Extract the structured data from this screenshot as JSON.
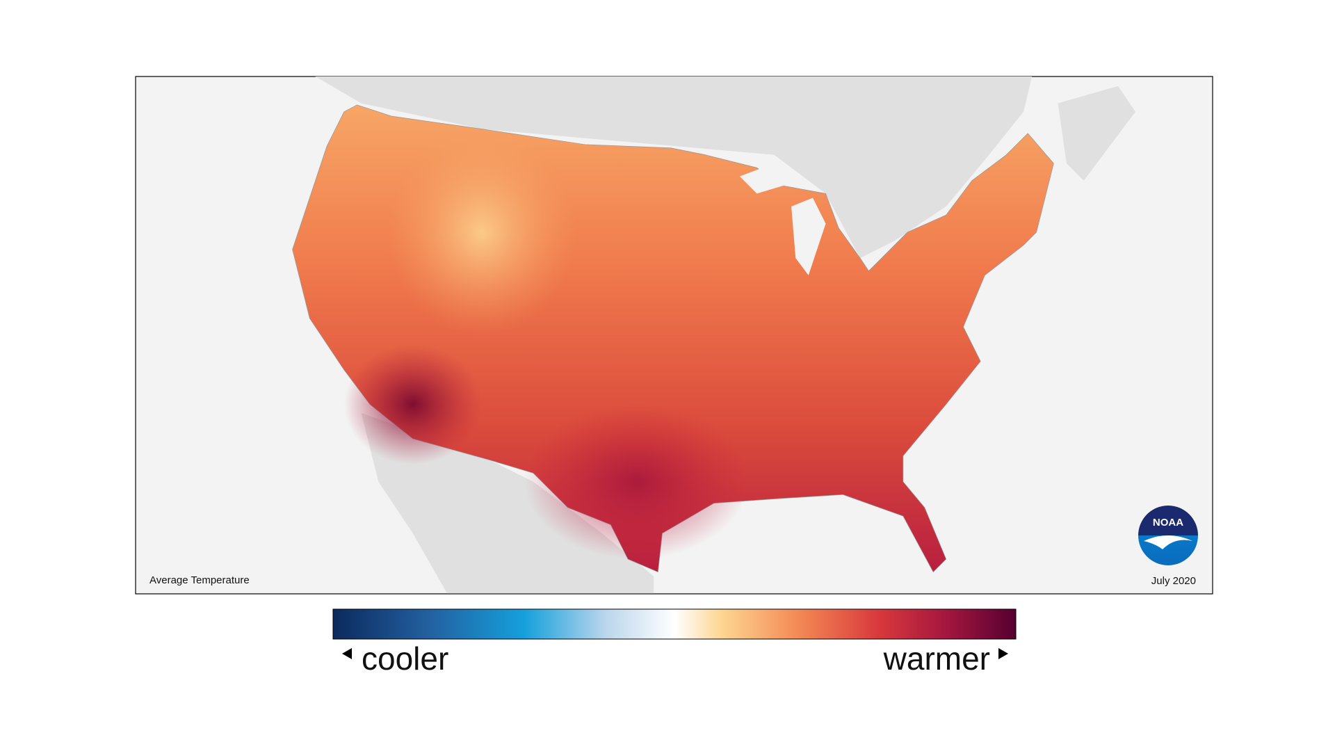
{
  "map": {
    "label": "Average Temperature",
    "date": "July 2020"
  },
  "legend": {
    "low_label": "cooler",
    "high_label": "warmer"
  },
  "logo": {
    "text": "NOAA"
  }
}
